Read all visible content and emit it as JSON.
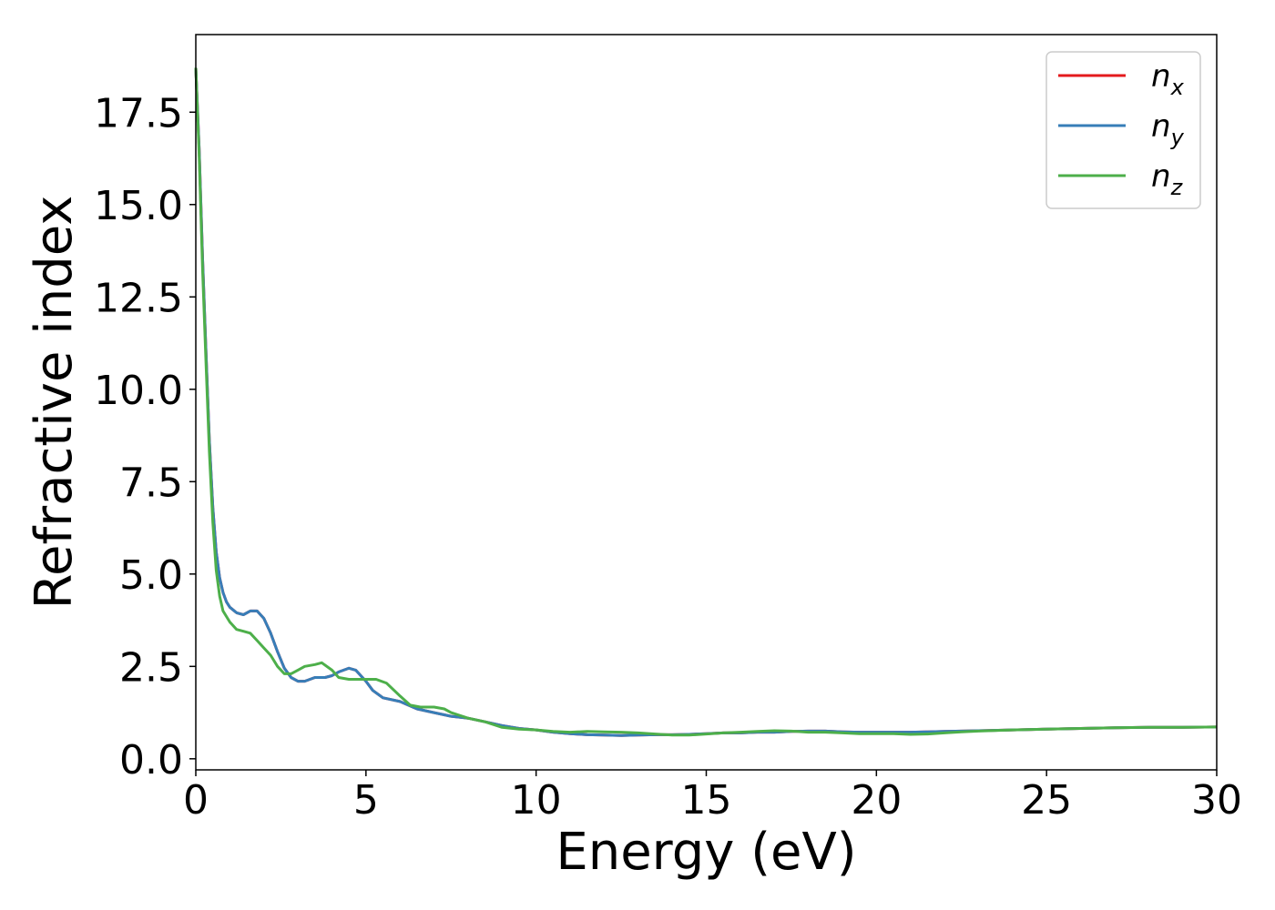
{
  "chart_data": {
    "type": "line",
    "xlabel": "Energy (eV)",
    "ylabel": "Refractive index",
    "xlim": [
      0,
      30
    ],
    "ylim": [
      -0.3,
      19.6
    ],
    "xticks": [
      0,
      5,
      10,
      15,
      20,
      25,
      30
    ],
    "xtick_labels": [
      "0",
      "5",
      "10",
      "15",
      "20",
      "25",
      "30"
    ],
    "yticks": [
      0.0,
      2.5,
      5.0,
      7.5,
      10.0,
      12.5,
      15.0,
      17.5
    ],
    "ytick_labels": [
      "0.0",
      "2.5",
      "5.0",
      "7.5",
      "10.0",
      "12.5",
      "15.0",
      "17.5"
    ],
    "grid": false,
    "legend_position": "top-right",
    "series": [
      {
        "name": "n_x",
        "legend_main": "n",
        "legend_sub": "x",
        "color": "#e41a1c",
        "points": [
          [
            0,
            18.7
          ],
          [
            0.1,
            16.5
          ],
          [
            0.2,
            13.5
          ],
          [
            0.3,
            11.0
          ],
          [
            0.4,
            8.6
          ],
          [
            0.5,
            6.8
          ],
          [
            0.6,
            5.6
          ],
          [
            0.7,
            4.9
          ],
          [
            0.8,
            4.5
          ],
          [
            0.9,
            4.25
          ],
          [
            1.0,
            4.1
          ],
          [
            1.2,
            3.95
          ],
          [
            1.4,
            3.9
          ],
          [
            1.6,
            4.0
          ],
          [
            1.8,
            4.0
          ],
          [
            2.0,
            3.8
          ],
          [
            2.2,
            3.4
          ],
          [
            2.4,
            2.9
          ],
          [
            2.6,
            2.45
          ],
          [
            2.8,
            2.2
          ],
          [
            3.0,
            2.1
          ],
          [
            3.2,
            2.1
          ],
          [
            3.5,
            2.2
          ],
          [
            3.8,
            2.2
          ],
          [
            4.0,
            2.25
          ],
          [
            4.2,
            2.35
          ],
          [
            4.5,
            2.45
          ],
          [
            4.7,
            2.4
          ],
          [
            5.0,
            2.1
          ],
          [
            5.2,
            1.85
          ],
          [
            5.5,
            1.65
          ],
          [
            6.0,
            1.55
          ],
          [
            6.5,
            1.35
          ],
          [
            7.0,
            1.25
          ],
          [
            7.5,
            1.15
          ],
          [
            8.0,
            1.1
          ],
          [
            8.5,
            1.0
          ],
          [
            9.0,
            0.9
          ],
          [
            9.5,
            0.82
          ],
          [
            10.0,
            0.78
          ],
          [
            10.5,
            0.72
          ],
          [
            11.0,
            0.68
          ],
          [
            11.5,
            0.65
          ],
          [
            12.0,
            0.64
          ],
          [
            12.5,
            0.63
          ],
          [
            13.0,
            0.64
          ],
          [
            13.5,
            0.65
          ],
          [
            14.0,
            0.65
          ],
          [
            14.5,
            0.66
          ],
          [
            15.0,
            0.68
          ],
          [
            15.5,
            0.7
          ],
          [
            16.0,
            0.7
          ],
          [
            16.5,
            0.72
          ],
          [
            17.0,
            0.72
          ],
          [
            17.5,
            0.74
          ],
          [
            18.0,
            0.75
          ],
          [
            18.5,
            0.75
          ],
          [
            19.0,
            0.73
          ],
          [
            19.5,
            0.72
          ],
          [
            20.0,
            0.72
          ],
          [
            20.5,
            0.72
          ],
          [
            21.0,
            0.72
          ],
          [
            21.5,
            0.73
          ],
          [
            22.0,
            0.74
          ],
          [
            22.5,
            0.75
          ],
          [
            23.0,
            0.76
          ],
          [
            24.0,
            0.78
          ],
          [
            25.0,
            0.8
          ],
          [
            26.0,
            0.82
          ],
          [
            27.0,
            0.84
          ],
          [
            28.0,
            0.85
          ],
          [
            29.0,
            0.85
          ],
          [
            30.0,
            0.86
          ]
        ]
      },
      {
        "name": "n_y",
        "legend_main": "n",
        "legend_sub": "y",
        "color": "#377eb8",
        "points": [
          [
            0,
            18.7
          ],
          [
            0.1,
            16.5
          ],
          [
            0.2,
            13.5
          ],
          [
            0.3,
            11.0
          ],
          [
            0.4,
            8.6
          ],
          [
            0.5,
            6.8
          ],
          [
            0.6,
            5.6
          ],
          [
            0.7,
            4.9
          ],
          [
            0.8,
            4.5
          ],
          [
            0.9,
            4.25
          ],
          [
            1.0,
            4.1
          ],
          [
            1.2,
            3.95
          ],
          [
            1.4,
            3.9
          ],
          [
            1.6,
            4.0
          ],
          [
            1.8,
            4.0
          ],
          [
            2.0,
            3.8
          ],
          [
            2.2,
            3.4
          ],
          [
            2.4,
            2.9
          ],
          [
            2.6,
            2.45
          ],
          [
            2.8,
            2.2
          ],
          [
            3.0,
            2.1
          ],
          [
            3.2,
            2.1
          ],
          [
            3.5,
            2.2
          ],
          [
            3.8,
            2.2
          ],
          [
            4.0,
            2.25
          ],
          [
            4.2,
            2.35
          ],
          [
            4.5,
            2.45
          ],
          [
            4.7,
            2.4
          ],
          [
            5.0,
            2.1
          ],
          [
            5.2,
            1.85
          ],
          [
            5.5,
            1.65
          ],
          [
            6.0,
            1.55
          ],
          [
            6.5,
            1.35
          ],
          [
            7.0,
            1.25
          ],
          [
            7.5,
            1.15
          ],
          [
            8.0,
            1.1
          ],
          [
            8.5,
            1.0
          ],
          [
            9.0,
            0.9
          ],
          [
            9.5,
            0.82
          ],
          [
            10.0,
            0.78
          ],
          [
            10.5,
            0.72
          ],
          [
            11.0,
            0.68
          ],
          [
            11.5,
            0.65
          ],
          [
            12.0,
            0.64
          ],
          [
            12.5,
            0.63
          ],
          [
            13.0,
            0.64
          ],
          [
            13.5,
            0.65
          ],
          [
            14.0,
            0.65
          ],
          [
            14.5,
            0.66
          ],
          [
            15.0,
            0.68
          ],
          [
            15.5,
            0.7
          ],
          [
            16.0,
            0.7
          ],
          [
            16.5,
            0.72
          ],
          [
            17.0,
            0.72
          ],
          [
            17.5,
            0.74
          ],
          [
            18.0,
            0.75
          ],
          [
            18.5,
            0.75
          ],
          [
            19.0,
            0.73
          ],
          [
            19.5,
            0.72
          ],
          [
            20.0,
            0.72
          ],
          [
            20.5,
            0.72
          ],
          [
            21.0,
            0.72
          ],
          [
            21.5,
            0.73
          ],
          [
            22.0,
            0.74
          ],
          [
            22.5,
            0.75
          ],
          [
            23.0,
            0.76
          ],
          [
            24.0,
            0.78
          ],
          [
            25.0,
            0.8
          ],
          [
            26.0,
            0.82
          ],
          [
            27.0,
            0.84
          ],
          [
            28.0,
            0.85
          ],
          [
            29.0,
            0.85
          ],
          [
            30.0,
            0.86
          ]
        ]
      },
      {
        "name": "n_z",
        "legend_main": "n",
        "legend_sub": "z",
        "color": "#4daf4a",
        "points": [
          [
            0,
            18.7
          ],
          [
            0.1,
            16.3
          ],
          [
            0.2,
            13.2
          ],
          [
            0.3,
            10.7
          ],
          [
            0.4,
            8.3
          ],
          [
            0.5,
            6.4
          ],
          [
            0.6,
            5.1
          ],
          [
            0.7,
            4.4
          ],
          [
            0.8,
            4.0
          ],
          [
            1.0,
            3.7
          ],
          [
            1.2,
            3.5
          ],
          [
            1.4,
            3.45
          ],
          [
            1.6,
            3.4
          ],
          [
            1.8,
            3.2
          ],
          [
            2.0,
            3.0
          ],
          [
            2.2,
            2.8
          ],
          [
            2.4,
            2.5
          ],
          [
            2.6,
            2.3
          ],
          [
            2.8,
            2.3
          ],
          [
            3.0,
            2.4
          ],
          [
            3.2,
            2.5
          ],
          [
            3.5,
            2.55
          ],
          [
            3.7,
            2.6
          ],
          [
            4.0,
            2.4
          ],
          [
            4.2,
            2.2
          ],
          [
            4.5,
            2.15
          ],
          [
            5.0,
            2.15
          ],
          [
            5.3,
            2.15
          ],
          [
            5.6,
            2.05
          ],
          [
            6.0,
            1.7
          ],
          [
            6.3,
            1.45
          ],
          [
            6.6,
            1.4
          ],
          [
            7.0,
            1.4
          ],
          [
            7.3,
            1.35
          ],
          [
            7.5,
            1.25
          ],
          [
            8.0,
            1.1
          ],
          [
            8.5,
            1.0
          ],
          [
            9.0,
            0.85
          ],
          [
            9.5,
            0.8
          ],
          [
            10.0,
            0.78
          ],
          [
            10.5,
            0.74
          ],
          [
            11.0,
            0.72
          ],
          [
            11.5,
            0.74
          ],
          [
            12.0,
            0.73
          ],
          [
            12.5,
            0.72
          ],
          [
            13.0,
            0.7
          ],
          [
            13.5,
            0.67
          ],
          [
            14.0,
            0.64
          ],
          [
            14.5,
            0.64
          ],
          [
            15.0,
            0.67
          ],
          [
            15.5,
            0.7
          ],
          [
            16.0,
            0.72
          ],
          [
            16.5,
            0.74
          ],
          [
            17.0,
            0.76
          ],
          [
            17.5,
            0.75
          ],
          [
            18.0,
            0.72
          ],
          [
            18.5,
            0.72
          ],
          [
            19.0,
            0.7
          ],
          [
            19.5,
            0.68
          ],
          [
            20.0,
            0.68
          ],
          [
            20.5,
            0.68
          ],
          [
            21.0,
            0.66
          ],
          [
            21.5,
            0.67
          ],
          [
            22.0,
            0.7
          ],
          [
            22.5,
            0.73
          ],
          [
            23.0,
            0.75
          ],
          [
            24.0,
            0.78
          ],
          [
            25.0,
            0.8
          ],
          [
            26.0,
            0.82
          ],
          [
            27.0,
            0.84
          ],
          [
            28.0,
            0.85
          ],
          [
            29.0,
            0.85
          ],
          [
            30.0,
            0.86
          ]
        ]
      }
    ]
  }
}
